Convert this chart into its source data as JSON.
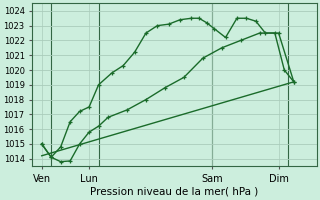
{
  "title": "Pression niveau de la mer( hPa )",
  "bg_color": "#cceedd",
  "grid_color": "#aaccbb",
  "line_color": "#1a6b2a",
  "vline_color": "#336644",
  "ylim": [
    1013.5,
    1024.5
  ],
  "yticks": [
    1014,
    1015,
    1016,
    1017,
    1018,
    1019,
    1020,
    1021,
    1022,
    1023,
    1024
  ],
  "xlim": [
    0,
    15
  ],
  "day_labels": [
    "Ven",
    "Lun",
    "Sam",
    "Dim"
  ],
  "day_positions": [
    0.5,
    3.0,
    9.5,
    13.0
  ],
  "vline_positions": [
    1.0,
    3.5,
    9.5,
    13.5
  ],
  "series1_x": [
    0.5,
    1.0,
    1.5,
    2.0,
    2.5,
    3.0,
    3.5,
    4.2,
    4.8,
    5.4,
    6.0,
    6.6,
    7.2,
    7.8,
    8.4,
    8.8,
    9.2,
    9.6,
    10.2,
    10.8,
    11.3,
    11.8,
    12.3,
    12.8,
    13.3,
    13.8
  ],
  "series1_y": [
    1015.0,
    1014.1,
    1014.8,
    1016.5,
    1017.2,
    1017.5,
    1019.0,
    1019.8,
    1020.3,
    1021.2,
    1022.5,
    1023.0,
    1023.1,
    1023.4,
    1023.5,
    1023.5,
    1023.2,
    1022.8,
    1022.2,
    1023.5,
    1023.5,
    1023.3,
    1022.5,
    1022.5,
    1020.0,
    1019.2
  ],
  "series2_x": [
    0.5,
    1.0,
    1.5,
    2.0,
    2.5,
    3.0,
    3.5,
    4.0,
    5.0,
    6.0,
    7.0,
    8.0,
    9.0,
    10.0,
    11.0,
    12.0,
    13.0,
    13.8
  ],
  "series2_y": [
    1015.0,
    1014.1,
    1013.8,
    1013.85,
    1015.0,
    1015.8,
    1016.2,
    1016.8,
    1017.3,
    1018.0,
    1018.8,
    1019.5,
    1020.8,
    1021.5,
    1022.0,
    1022.5,
    1022.5,
    1019.2
  ],
  "series3_x": [
    0.5,
    13.8
  ],
  "series3_y": [
    1014.2,
    1019.2
  ],
  "marker_size": 3.5,
  "lw": 1.0,
  "ytick_fontsize": 6.0,
  "xtick_fontsize": 7.0,
  "xlabel_fontsize": 7.5
}
